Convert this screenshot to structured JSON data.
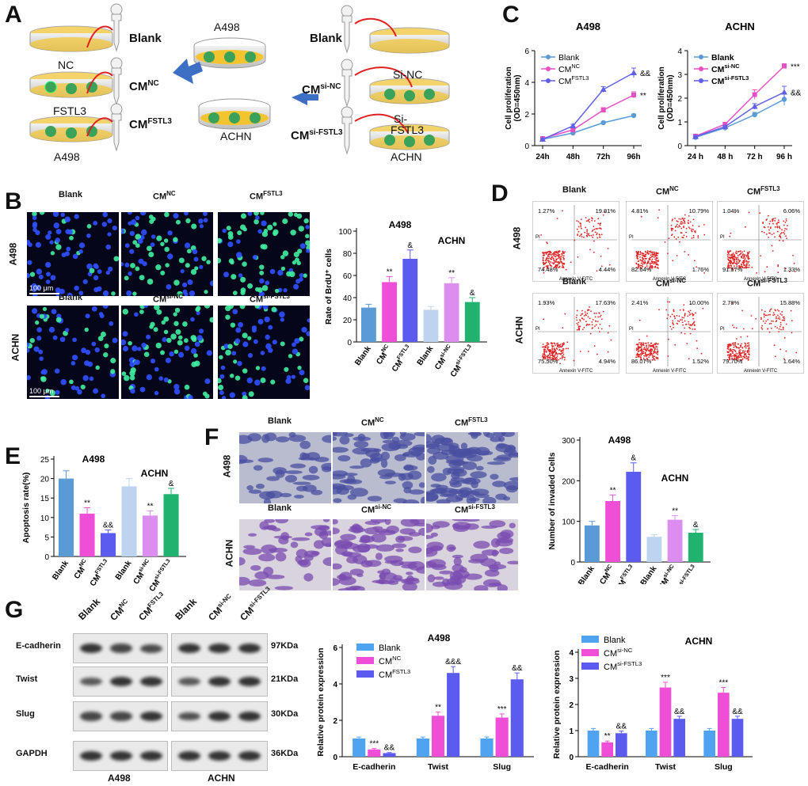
{
  "panels": {
    "A": {
      "letter": "A",
      "left_labels": [
        "NC",
        "FSTL3",
        "A498"
      ],
      "left_targets": {
        "blank": "Blank",
        "cm_nc": "CM",
        "cm_nc_sup": "NC",
        "cm_fstl3": "CM",
        "cm_fstl3_sup": "FSTL3"
      },
      "center_top": "A498",
      "center_bottom": "ACHN",
      "right_labels": {
        "blank": "Blank",
        "si_nc": "Si-NC",
        "si_fstl3_1": "Si-",
        "si_fstl3_2": "FSTL3",
        "achn": "ACHN"
      },
      "right_targets": {
        "cm_si_nc": "CM",
        "cm_si_nc_sup": "si-NC",
        "cm_si_fstl3": "CM",
        "cm_si_fstl3_sup": "si-FSTL3"
      }
    },
    "B": {
      "letter": "B",
      "row1_label": "A498",
      "row2_label": "ACHN",
      "row1_cols": [
        "Blank",
        "CM",
        "CM"
      ],
      "row1_sups": [
        "",
        "NC",
        "FSTL3"
      ],
      "row2_cols": [
        "Blank",
        "CM",
        "CM"
      ],
      "row2_sups": [
        "",
        "si-NC",
        "si-FSTL3"
      ],
      "scale": "100 μm"
    },
    "C": {
      "letter": "C"
    },
    "D": {
      "letter": "D",
      "row1_label": "A498",
      "row2_label": "ACHN",
      "titles_row1": [
        "Blank",
        "CM",
        "CM"
      ],
      "sups_row1": [
        "",
        "NC",
        "FSTL3"
      ],
      "titles_row2": [
        "Blank",
        "CM",
        "CM"
      ],
      "sups_row2": [
        "",
        "si-NC",
        "si-FSTL3"
      ],
      "quadrants": [
        [
          "1.27%",
          "19.81%",
          "74.48%",
          "4.44%"
        ],
        [
          "4.81%",
          "10.79%",
          "82.64%",
          "1.76%"
        ],
        [
          "1.04%",
          "6.06%",
          "91.57%",
          "1.33%"
        ],
        [
          "1.93%",
          "17.63%",
          "75.50%",
          "4.94%"
        ],
        [
          "2.41%",
          "10.00%",
          "86.07%",
          "1.52%"
        ],
        [
          "2.78%",
          "15.88%",
          "79.70%",
          "1.64%"
        ]
      ],
      "xaxis": "Annexin V-FITC",
      "yaxis": "PI"
    },
    "E": {
      "letter": "E"
    },
    "F": {
      "letter": "F",
      "row1_label": "A498",
      "row2_label": "ACHN",
      "titles_row1": [
        "Blank",
        "CM",
        "CM"
      ],
      "sups_row1": [
        "",
        "NC",
        "FSTL3"
      ],
      "titles_row2": [
        "Blank",
        "CM",
        "CM"
      ],
      "sups_row2": [
        "",
        "si-NC",
        "si-FSTL3"
      ]
    },
    "G": {
      "letter": "G",
      "lanes": [
        "Blank",
        "CM",
        "CM",
        "Blank",
        "CM",
        "CM"
      ],
      "lane_sups": [
        "",
        "NC",
        "FSTL3",
        "",
        "si-NC",
        "si-FSTL3"
      ],
      "proteins": [
        "E-cadherin",
        "Twist",
        "Slug",
        "GAPDH"
      ],
      "weights": [
        "97KDa",
        "21KDa",
        "30KDa",
        "36KDa"
      ],
      "cell_lines": [
        "A498",
        "ACHN"
      ]
    }
  },
  "chart_data": [
    {
      "id": "C-A498",
      "type": "line",
      "title": "A498",
      "ylabel": "Cell proliferation (OD=450nm)",
      "xlabel": "",
      "categories": [
        "24h",
        "48h",
        "72h",
        "96h"
      ],
      "ylim": [
        0,
        6
      ],
      "yticks": [
        0,
        2,
        4,
        6
      ],
      "series": [
        {
          "name": "Blank",
          "values": [
            0.4,
            0.8,
            1.45,
            1.9
          ],
          "err": [
            0.05,
            0.05,
            0.08,
            0.1
          ],
          "color": "#5b9bd5",
          "marker": "circle"
        },
        {
          "name": "CM",
          "sup": "NC",
          "values": [
            0.45,
            1.0,
            2.25,
            3.2
          ],
          "err": [
            0.05,
            0.08,
            0.15,
            0.2
          ],
          "color": "#e84fc5",
          "marker": "square"
        },
        {
          "name": "CM",
          "sup": "FSTL3",
          "values": [
            0.4,
            1.25,
            3.55,
            4.6
          ],
          "err": [
            0.05,
            0.1,
            0.18,
            0.3
          ],
          "color": "#6060e8",
          "marker": "triangle"
        }
      ],
      "annotations": [
        {
          "text": "**",
          "series": 1
        },
        {
          "text": "&&",
          "series": 2
        }
      ]
    },
    {
      "id": "C-ACHN",
      "type": "line",
      "title": "ACHN",
      "ylabel": "Cell proliferation (OD=450nm)",
      "xlabel": "",
      "categories": [
        "24 h",
        "48 h",
        "72 h",
        "96 h"
      ],
      "ylim": [
        0,
        4
      ],
      "yticks": [
        0,
        1,
        2,
        3,
        4
      ],
      "series": [
        {
          "name": "Blank",
          "values": [
            0.35,
            0.75,
            1.3,
            1.95
          ],
          "err": [
            0.03,
            0.05,
            0.1,
            0.25
          ],
          "color": "#5b9bd5",
          "marker": "circle"
        },
        {
          "name": "CM",
          "sup": "si-NC",
          "values": [
            0.4,
            0.9,
            2.15,
            3.35
          ],
          "err": [
            0.03,
            0.06,
            0.2,
            0.1
          ],
          "color": "#e84fc5",
          "marker": "square"
        },
        {
          "name": "CM",
          "sup": "si-FSTL3",
          "values": [
            0.38,
            0.8,
            1.65,
            2.25
          ],
          "err": [
            0.03,
            0.05,
            0.12,
            0.25
          ],
          "color": "#6060e8",
          "marker": "triangle"
        }
      ],
      "annotations": [
        {
          "text": "***",
          "series": 1
        },
        {
          "text": "&&",
          "series": 2
        }
      ]
    },
    {
      "id": "B-bar",
      "type": "bar",
      "title": "A498",
      "title2": "ACHN",
      "ylabel": "Rate of BrdU⁺ cells",
      "ylim": [
        0,
        100
      ],
      "yticks": [
        0,
        20,
        40,
        60,
        80,
        100
      ],
      "categories": [
        "Blank",
        "CM",
        "CM",
        "Blank",
        "CM",
        "CM"
      ],
      "category_sups": [
        "",
        "NC",
        "FSTL3",
        "",
        "si-NC",
        "si-FSTL3"
      ],
      "values": [
        31,
        54,
        75,
        29,
        53,
        36
      ],
      "err": [
        3,
        5,
        8,
        3,
        5,
        4
      ],
      "colors": [
        "#5b9bd5",
        "#ef4fd6",
        "#5b5bef",
        "#bcd4f0",
        "#dc8df0",
        "#1fb36f"
      ],
      "labels": [
        "",
        "**",
        "&",
        "",
        "**",
        "&"
      ]
    },
    {
      "id": "E-bar",
      "type": "bar",
      "title": "A498",
      "title2": "ACHN",
      "ylabel": "Apoptosis rate(%)",
      "ylim": [
        0,
        25
      ],
      "yticks": [
        0,
        5,
        10,
        15,
        20,
        25
      ],
      "categories": [
        "Blank",
        "CM",
        "CM",
        "Blank",
        "CM",
        "CM"
      ],
      "category_sups": [
        "",
        "NC",
        "FSTL3",
        "",
        "si-NC",
        "si-FSTL3"
      ],
      "values": [
        20,
        11,
        6,
        18,
        10.5,
        16
      ],
      "err": [
        2,
        1.5,
        0.8,
        2,
        1.2,
        1.5
      ],
      "colors": [
        "#5b9bd5",
        "#ef4fd6",
        "#5b5bef",
        "#bcd4f0",
        "#dc8df0",
        "#1fb36f"
      ],
      "labels": [
        "",
        "**",
        "&&",
        "",
        "**",
        "&"
      ]
    },
    {
      "id": "F-bar",
      "type": "bar",
      "title": "A498",
      "title2": "ACHN",
      "ylabel": "Number of invaded Cells",
      "ylim": [
        0,
        300
      ],
      "yticks": [
        0,
        100,
        200,
        300
      ],
      "categories": [
        "Blank",
        "CM",
        "CM",
        "Blank",
        "CM",
        "CM"
      ],
      "category_sups": [
        "",
        "NC",
        "FSTL3",
        "",
        "si-NC",
        "si-FSTL3"
      ],
      "values": [
        90,
        150,
        222,
        62,
        104,
        72
      ],
      "err": [
        10,
        15,
        22,
        5,
        10,
        8
      ],
      "colors": [
        "#5b9bd5",
        "#ef4fd6",
        "#5b5bef",
        "#bcd4f0",
        "#dc8df0",
        "#1fb36f"
      ],
      "labels": [
        "",
        "**",
        "&",
        "",
        "**",
        "&"
      ]
    },
    {
      "id": "G-A498",
      "type": "bar",
      "title": "A498",
      "ylabel": "Relative protein expression",
      "ylim": [
        0,
        6
      ],
      "yticks": [
        0,
        2,
        4,
        6
      ],
      "categories": [
        "E-cadherin",
        "Twist",
        "Slug"
      ],
      "series": [
        {
          "name": "Blank",
          "values": [
            1.0,
            1.0,
            1.0
          ],
          "err": [
            0.08,
            0.08,
            0.08
          ],
          "color": "#4fa3f0"
        },
        {
          "name": "CM",
          "sup": "NC",
          "values": [
            0.4,
            2.25,
            2.15
          ],
          "err": [
            0.05,
            0.2,
            0.2
          ],
          "color": "#ef4fd6"
        },
        {
          "name": "CM",
          "sup": "FSTL3",
          "values": [
            0.2,
            4.6,
            4.25
          ],
          "err": [
            0.03,
            0.35,
            0.35
          ],
          "color": "#5b5bef"
        }
      ],
      "labels": [
        [
          "",
          "***",
          "&&"
        ],
        [
          "",
          "**",
          "&&&"
        ],
        [
          "",
          "***",
          "&&"
        ]
      ]
    },
    {
      "id": "G-ACHN",
      "type": "bar",
      "title": "ACHN",
      "ylabel": "Relative protein expression",
      "ylim": [
        0,
        4
      ],
      "yticks": [
        0,
        1,
        2,
        3,
        4
      ],
      "categories": [
        "E-cadherin",
        "Twist",
        "Slug"
      ],
      "series": [
        {
          "name": "Blank",
          "values": [
            1.0,
            1.0,
            1.0
          ],
          "err": [
            0.08,
            0.08,
            0.08
          ],
          "color": "#4fa3f0"
        },
        {
          "name": "CM",
          "sup": "si-NC",
          "values": [
            0.55,
            2.65,
            2.45
          ],
          "err": [
            0.05,
            0.2,
            0.2
          ],
          "color": "#ef4fd6"
        },
        {
          "name": "CM",
          "sup": "si-FSTL3",
          "values": [
            0.9,
            1.45,
            1.45
          ],
          "err": [
            0.08,
            0.1,
            0.1
          ],
          "color": "#5b5bef"
        }
      ],
      "labels": [
        [
          "",
          "**",
          "&&"
        ],
        [
          "",
          "***",
          "&&"
        ],
        [
          "",
          "***",
          "&&"
        ]
      ]
    }
  ]
}
